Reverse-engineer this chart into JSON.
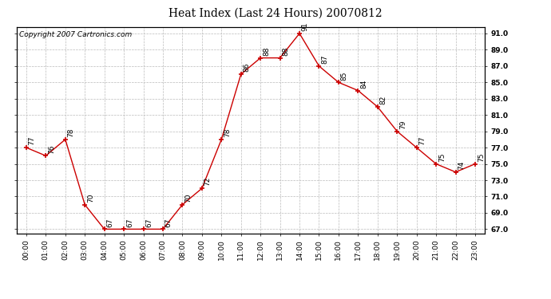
{
  "title": "Heat Index (Last 24 Hours) 20070812",
  "copyright_text": "Copyright 2007 Cartronics.com",
  "hours": [
    "00:00",
    "01:00",
    "02:00",
    "03:00",
    "04:00",
    "05:00",
    "06:00",
    "07:00",
    "08:00",
    "09:00",
    "10:00",
    "11:00",
    "12:00",
    "13:00",
    "14:00",
    "15:00",
    "16:00",
    "17:00",
    "18:00",
    "19:00",
    "20:00",
    "21:00",
    "22:00",
    "23:00"
  ],
  "values": [
    77,
    76,
    78,
    70,
    67,
    67,
    67,
    67,
    70,
    72,
    78,
    86,
    88,
    88,
    91,
    87,
    85,
    84,
    82,
    79,
    77,
    75,
    74,
    75
  ],
  "ylim_min": 66.5,
  "ylim_max": 91.8,
  "ytick_min": 67.0,
  "ytick_max": 91.0,
  "ytick_step": 2.0,
  "line_color": "#cc0000",
  "marker_color": "#cc0000",
  "grid_color": "#bbbbbb",
  "bg_color": "#ffffff",
  "title_fontsize": 10,
  "label_fontsize": 6.5,
  "annotation_fontsize": 6.5,
  "copyright_fontsize": 6.5
}
